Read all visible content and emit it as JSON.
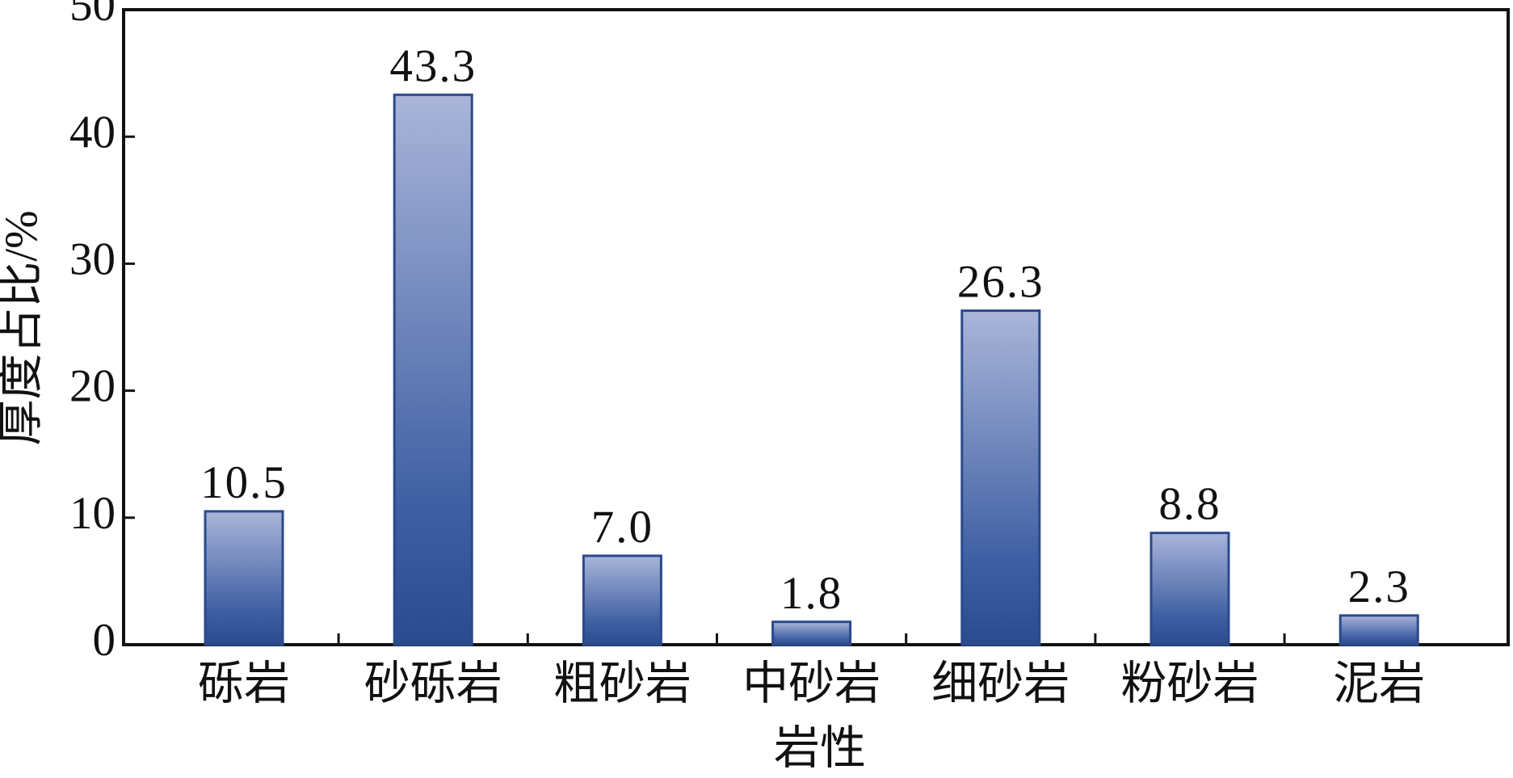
{
  "chart_data": {
    "type": "bar",
    "x_label": "岩性",
    "y_label": "厚度占比/%",
    "categories": [
      "砾岩",
      "砂砾岩",
      "粗砂岩",
      "中砂岩",
      "细砂岩",
      "粉砂岩",
      "泥岩"
    ],
    "values": [
      10.5,
      43.3,
      7.0,
      1.8,
      26.3,
      8.8,
      2.3
    ],
    "value_labels": [
      "10.5",
      "43.3",
      "7.0",
      "1.8",
      "26.3",
      "8.8",
      "2.3"
    ],
    "color": "#2b4a8c",
    "ylim": [
      0,
      50
    ],
    "yticks": [
      0,
      10,
      20,
      30,
      40,
      50
    ]
  }
}
